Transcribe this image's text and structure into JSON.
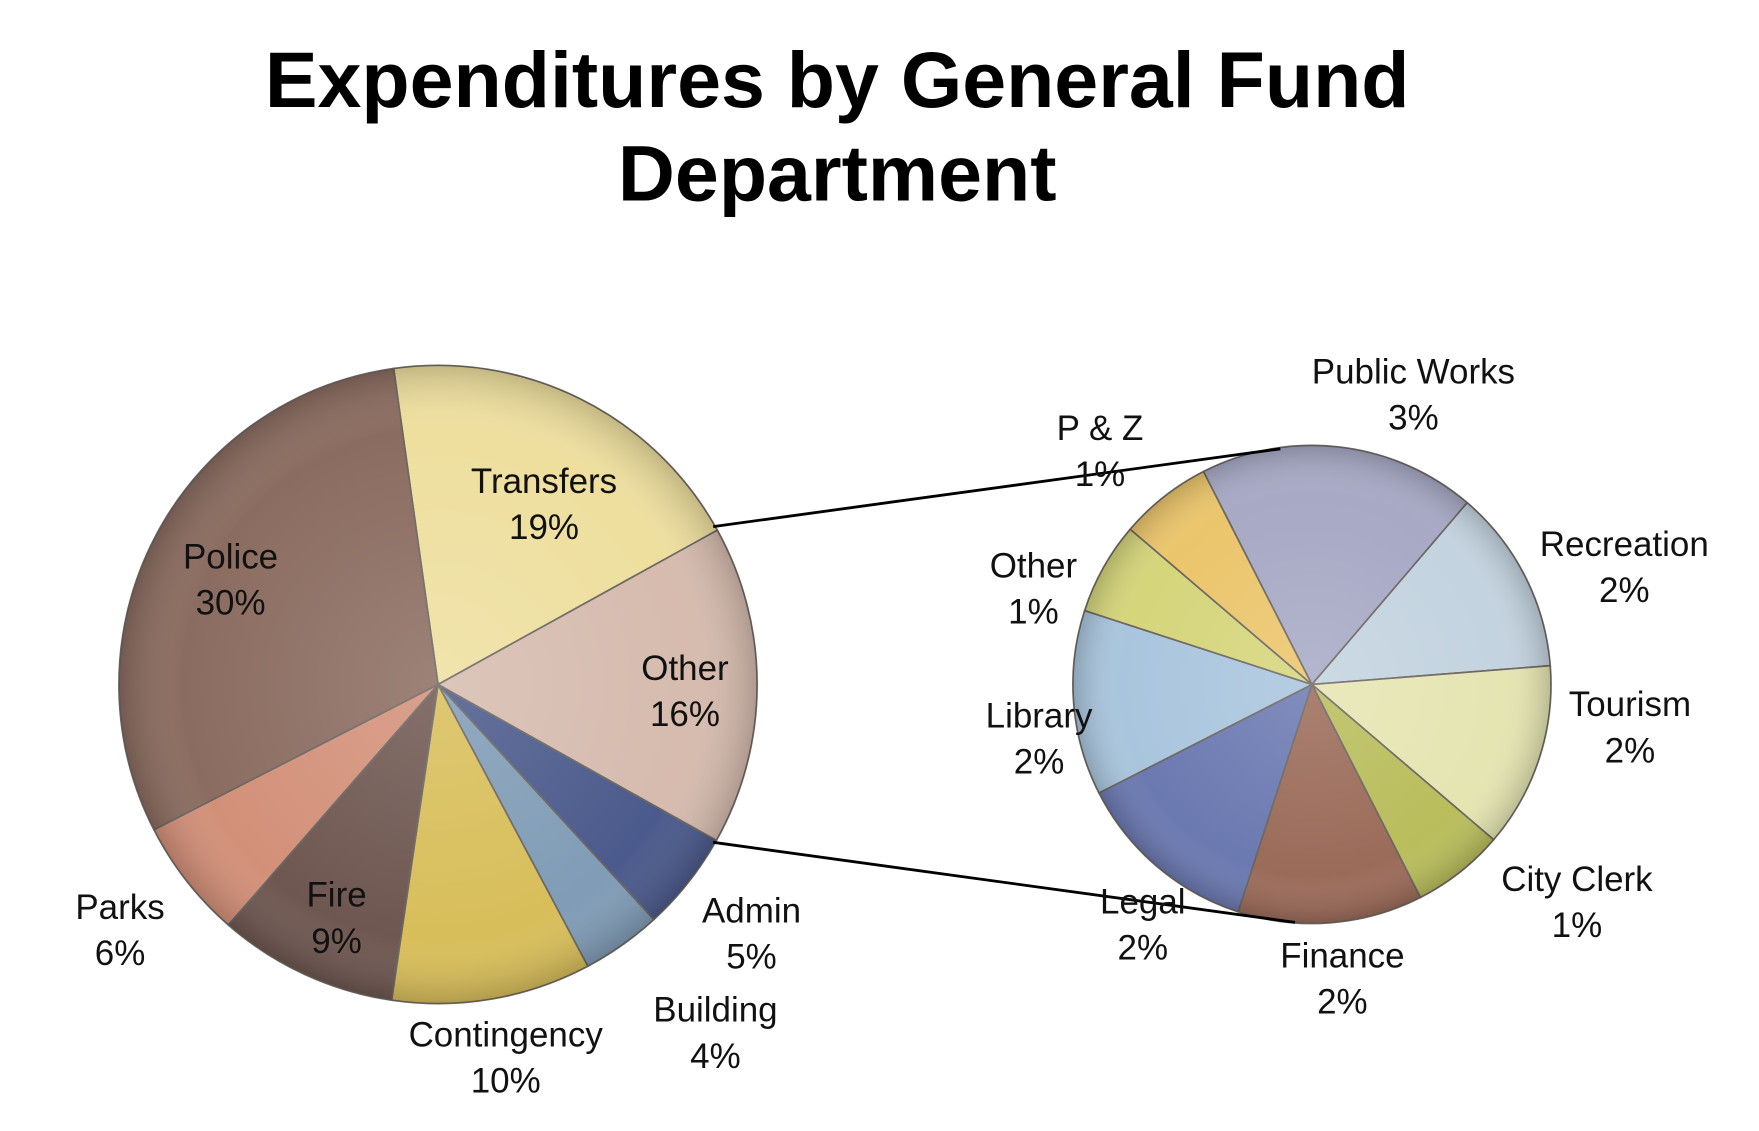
{
  "chart_data": {
    "type": "pie",
    "subtype": "pie-of-pie",
    "title": [
      "Expenditures by General Fund",
      "Department"
    ],
    "main_pie": [
      {
        "label": "Transfers",
        "value": 19,
        "value_label": "19%",
        "color": "#eedf9e"
      },
      {
        "label": "Other",
        "value": 16,
        "value_label": "16%",
        "color": "#d6bbae"
      },
      {
        "label": "Admin",
        "value": 5,
        "value_label": "5%",
        "color": "#4b5a8c"
      },
      {
        "label": "Building",
        "value": 4,
        "value_label": "4%",
        "color": "#809cb6"
      },
      {
        "label": "Contingency",
        "value": 10,
        "value_label": "10%",
        "color": "#d8be5a"
      },
      {
        "label": "Fire",
        "value": 9,
        "value_label": "9%",
        "color": "#6f5751"
      },
      {
        "label": "Parks",
        "value": 6,
        "value_label": "6%",
        "color": "#d39079"
      },
      {
        "label": "Police",
        "value": 30,
        "value_label": "30%",
        "color": "#8b6c60"
      }
    ],
    "secondary_pie_expands": "Other",
    "secondary_pie": [
      {
        "label": "Public Works",
        "value": 3,
        "value_label": "3%",
        "color": "#a7a9c5"
      },
      {
        "label": "Recreation",
        "value": 2,
        "value_label": "2%",
        "color": "#c3d3df"
      },
      {
        "label": "Tourism",
        "value": 2,
        "value_label": "2%",
        "color": "#e5e5b2"
      },
      {
        "label": "City Clerk",
        "value": 1,
        "value_label": "1%",
        "color": "#b9bd5b"
      },
      {
        "label": "Finance",
        "value": 2,
        "value_label": "2%",
        "color": "#9b6b59"
      },
      {
        "label": "Legal",
        "value": 2,
        "value_label": "2%",
        "color": "#6b79b1"
      },
      {
        "label": "Library",
        "value": 2,
        "value_label": "2%",
        "color": "#a9c5dd"
      },
      {
        "label": "Other",
        "value": 1,
        "value_label": "1%",
        "color": "#d5d57b"
      },
      {
        "label": "P & Z",
        "value": 1,
        "value_label": "1%",
        "color": "#ebc56b"
      }
    ],
    "legend": "none",
    "data_labels": "category and percentage"
  }
}
